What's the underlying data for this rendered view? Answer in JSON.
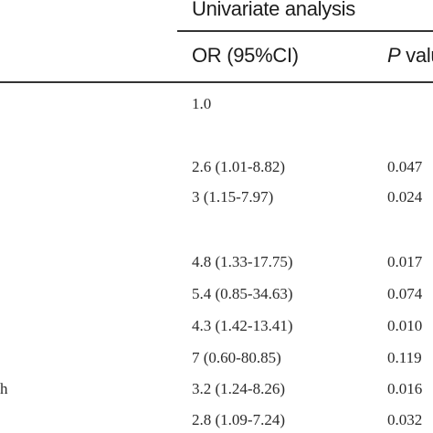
{
  "table": {
    "group_header": "Univariate analysis",
    "col_or_header": "OR (95%CI)",
    "col_p_header_italic": "P",
    "col_p_header_rest": " valu",
    "rows": [
      {
        "label": "",
        "or": "1.0",
        "p": ""
      },
      {
        "label": "",
        "or": "2.6 (1.01-8.82)",
        "p": "0.047"
      },
      {
        "label": "",
        "or": "3 (1.15-7.97)",
        "p": "0.024"
      },
      {
        "label": "",
        "or": "4.8 (1.33-17.75)",
        "p": "0.017"
      },
      {
        "label": "",
        "or": "5.4 (0.85-34.63)",
        "p": "0.074"
      },
      {
        "label": "",
        "or": "4.3 (1.42-13.41)",
        "p": "0.010"
      },
      {
        "label": "",
        "or": "7 (0.60-80.85)",
        "p": "0.119"
      },
      {
        "label": "h",
        "or": "3.2 (1.24-8.26)",
        "p": "0.016"
      },
      {
        "label": "",
        "or": "2.8 (1.09-7.24)",
        "p": "0.032"
      }
    ]
  }
}
